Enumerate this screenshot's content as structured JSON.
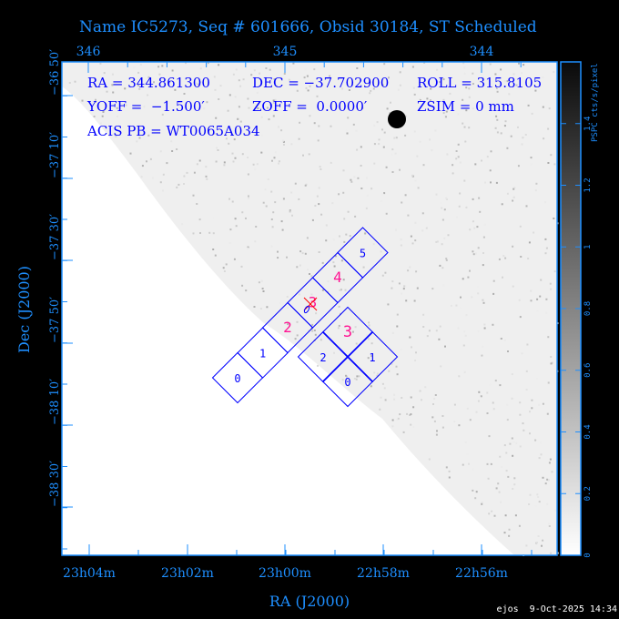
{
  "title": "Name IC5273, Seq # 601666, Obsid 30184, ST Scheduled",
  "info": {
    "ra": "RA = 344.861300",
    "dec": "DEC = −37.702900",
    "roll": "ROLL = 315.8105",
    "yoff": "YOFF =  −1.500′",
    "zoff": "ZOFF =  0.0000′",
    "zsim": "ZSIM = 0 mm",
    "acis_pb": "ACIS PB = WT0065A034"
  },
  "axes": {
    "xlabel": "RA (J2000)",
    "ylabel": "Dec (J2000)",
    "x_ticks": [
      "23h04m",
      "23h02m",
      "23h00m",
      "22h58m",
      "22h56m"
    ],
    "top_ticks": [
      "346",
      "345",
      "344"
    ],
    "y_ticks": [
      "−36 50′",
      "−37 10′",
      "−37 30′",
      "−37 50′",
      "−38 10′",
      "−38 30′"
    ]
  },
  "colorbar": {
    "label": "PSPC cts/s/pixel",
    "ticks": [
      "0",
      "0.2",
      "0.4",
      "0.6",
      "0.8",
      "1",
      "1.2",
      "1.4"
    ],
    "range": [
      0,
      1.6
    ]
  },
  "chips": {
    "acis_s": [
      {
        "label": "0",
        "color": "#0000ff"
      },
      {
        "label": "1",
        "color": "#0000ff"
      },
      {
        "label": "2",
        "color": "#ff1493"
      },
      {
        "label": "3",
        "color": "#ff1493"
      },
      {
        "label": "4",
        "color": "#ff1493"
      },
      {
        "label": "5",
        "color": "#0000ff"
      }
    ],
    "acis_i": [
      {
        "label": "3",
        "color": "#ff1493"
      },
      {
        "label": "2",
        "color": "#0000ff"
      },
      {
        "label": "1",
        "color": "#0000ff"
      },
      {
        "label": "0",
        "color": "#0000ff"
      }
    ]
  },
  "footer": "ejos  9-Oct-2025 14:34",
  "colors": {
    "axis": "#1e8fff",
    "chip_outline": "#0000ff",
    "aimpoint": "#ff0000"
  }
}
